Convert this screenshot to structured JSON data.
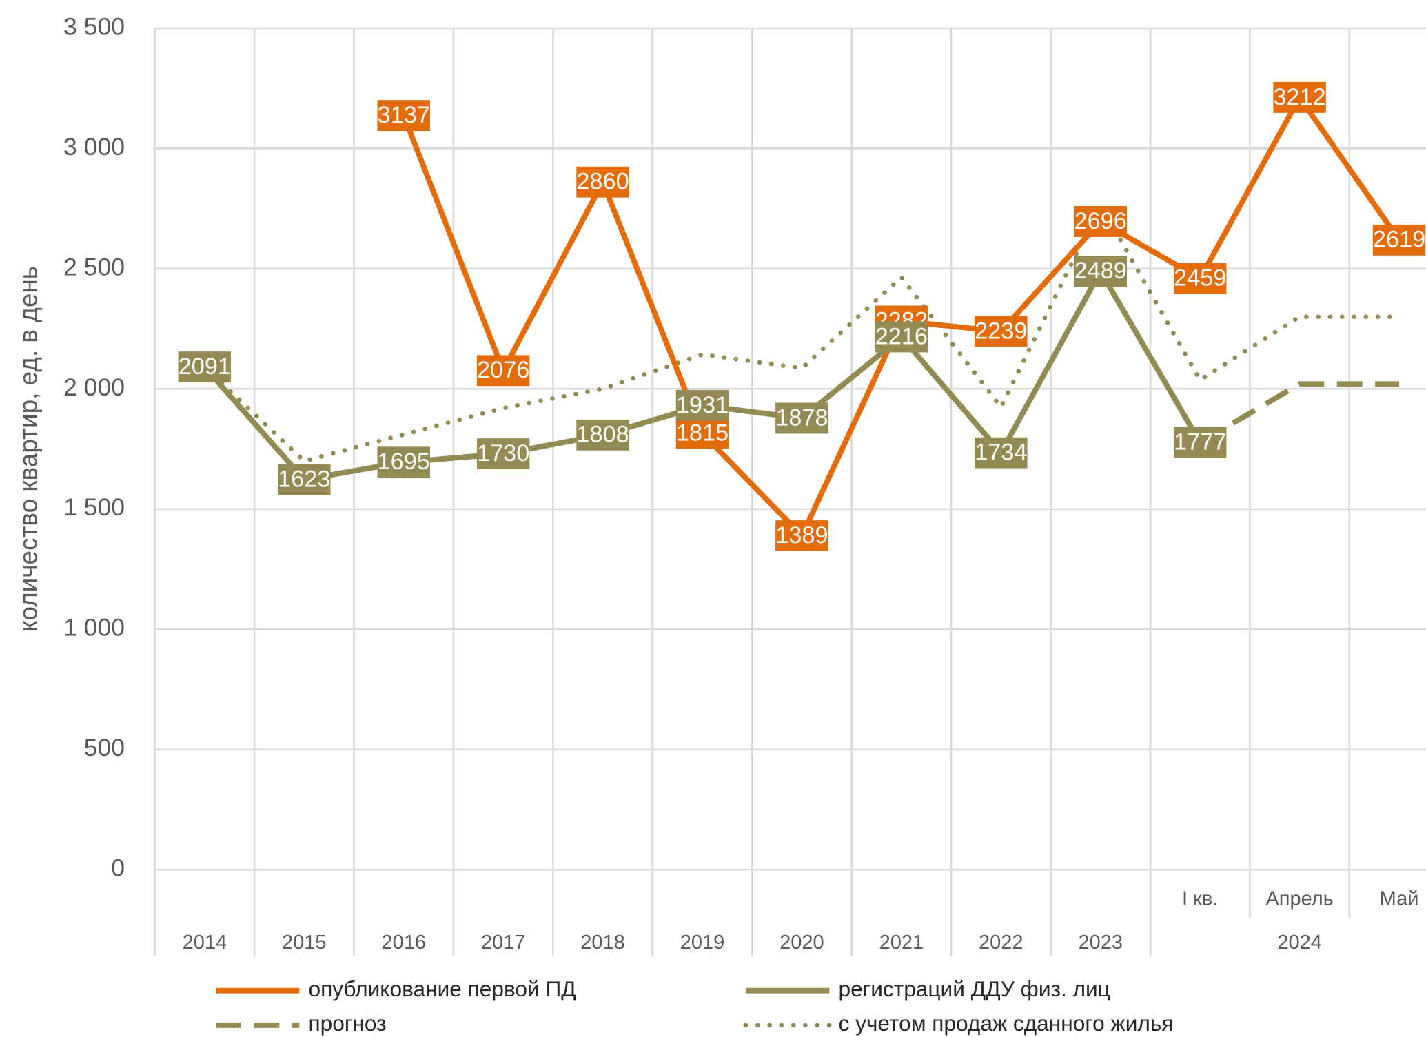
{
  "chart_data": {
    "type": "line",
    "ylabel": "количество квартир, ед. в день",
    "categories": [
      "2014",
      "2015",
      "2016",
      "2017",
      "2018",
      "2019",
      "2020",
      "2021",
      "2022",
      "2023",
      "I кв.",
      "Апрель",
      "Май"
    ],
    "category_groups": [
      {
        "label": "2024",
        "from": 10,
        "count": 3
      }
    ],
    "series": [
      {
        "name": "опубликование первой ПД",
        "color": "#e46c0a",
        "style": "solid",
        "labels": true,
        "values": [
          null,
          null,
          3137,
          2076,
          2860,
          1815,
          1389,
          2282,
          2239,
          2696,
          2459,
          3212,
          2619
        ]
      },
      {
        "name": "регистраций ДДУ физ. лиц",
        "color": "#948a54",
        "style": "solid",
        "labels": true,
        "values": [
          2091,
          1623,
          1695,
          1730,
          1808,
          1931,
          1878,
          2216,
          1734,
          2489,
          1777,
          null,
          null
        ]
      },
      {
        "name": "прогноз",
        "color": "#948a54",
        "style": "dashed",
        "labels": false,
        "values": [
          null,
          null,
          null,
          null,
          null,
          null,
          null,
          null,
          null,
          null,
          1777,
          2020,
          2020
        ]
      },
      {
        "name": "с учетом продаж сданного жилья",
        "color": "#948a54",
        "style": "dotted",
        "labels": false,
        "values": [
          2091,
          1700,
          1810,
          1920,
          2000,
          2143,
          2086,
          2464,
          1924,
          2766,
          2037,
          2300,
          2300
        ]
      }
    ],
    "ylim": [
      0,
      3500
    ],
    "yticks": [
      0,
      500,
      {
        "value": 1000,
        "label": "1 000"
      },
      {
        "value": 1500,
        "label": "1 500"
      },
      {
        "value": 2000,
        "label": "2 000"
      },
      {
        "value": 2500,
        "label": "2 500"
      },
      {
        "value": 3000,
        "label": "3 000"
      },
      {
        "value": 3500,
        "label": "3 500"
      }
    ],
    "grid": true,
    "legend": "bottom"
  }
}
